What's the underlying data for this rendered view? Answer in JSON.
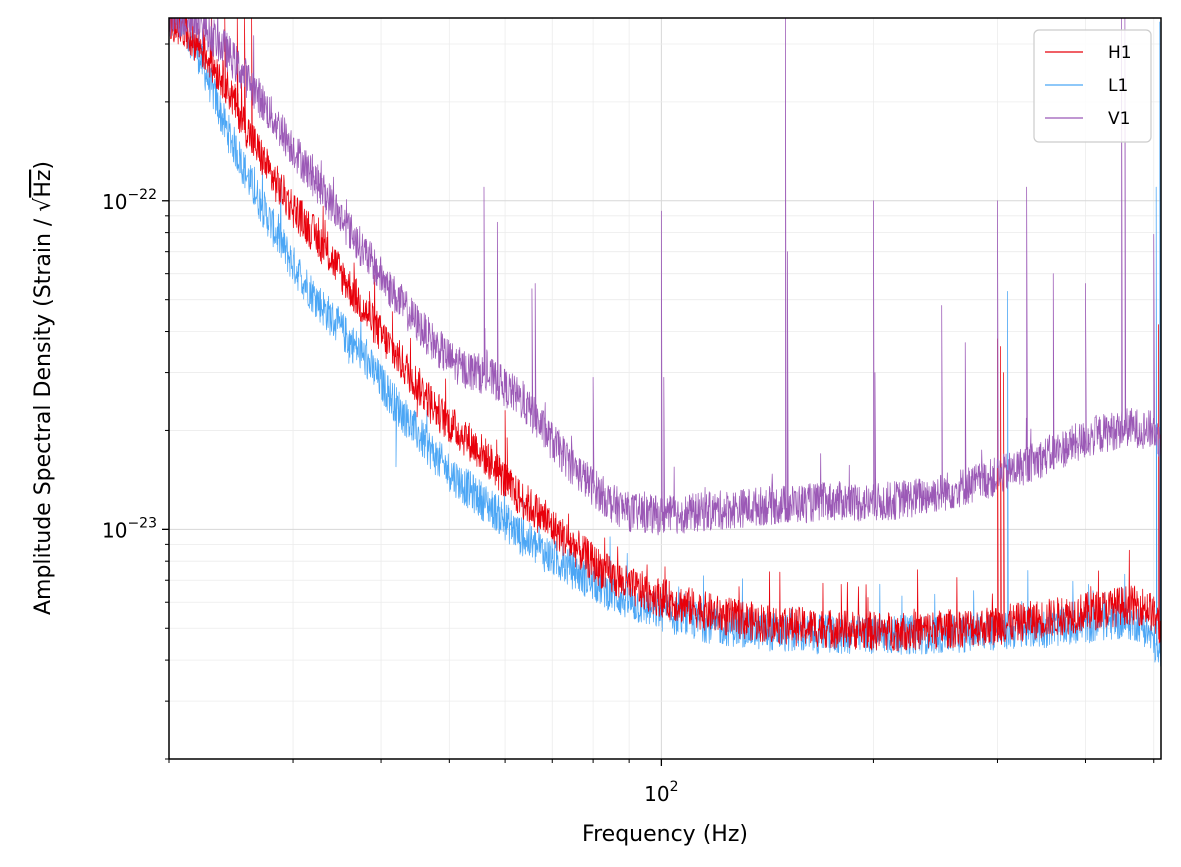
{
  "chart_data": {
    "type": "line",
    "xlabel": "Frequency (Hz)",
    "ylabel": {
      "prefix": "Amplitude Spectral Density (Strain / ",
      "radical": "√",
      "radicand": "Hz",
      "suffix": ")"
    },
    "xscale": "log",
    "yscale": "log",
    "xlim": [
      20,
      512
    ],
    "ylim": [
      2e-24,
      3.6e-22
    ],
    "grid": true,
    "legend_position": "top-right",
    "x_ticks": [
      {
        "value": 100,
        "base": "10",
        "exponent": "2"
      }
    ],
    "y_ticks": [
      {
        "value": 1e-23,
        "base": "10",
        "exponent": "−23"
      },
      {
        "value": 1e-22,
        "base": "10",
        "exponent": "−22"
      }
    ],
    "series": [
      {
        "name": "H1",
        "color": "#e8000b",
        "points": [
          [
            20,
            3.6e-22
          ],
          [
            22,
            3e-22
          ],
          [
            24,
            2.3e-22
          ],
          [
            26,
            1.6e-22
          ],
          [
            28,
            1.18e-22
          ],
          [
            30,
            9.5e-23
          ],
          [
            32,
            8e-23
          ],
          [
            34,
            6.7e-23
          ],
          [
            36,
            5.5e-23
          ],
          [
            38,
            4.6e-23
          ],
          [
            40,
            3.9e-23
          ],
          [
            42,
            3.4e-23
          ],
          [
            44,
            2.95e-23
          ],
          [
            46,
            2.6e-23
          ],
          [
            48,
            2.3e-23
          ],
          [
            50,
            2.1e-23
          ],
          [
            52,
            1.95e-23
          ],
          [
            55,
            1.75e-23
          ],
          [
            58,
            1.55e-23
          ],
          [
            60,
            1.4e-23
          ],
          [
            62,
            1.28e-23
          ],
          [
            65,
            1.18e-23
          ],
          [
            68,
            1.08e-23
          ],
          [
            72,
            9.6e-24
          ],
          [
            76,
            8.7e-24
          ],
          [
            80,
            7.9e-24
          ],
          [
            85,
            7.2e-24
          ],
          [
            90,
            6.7e-24
          ],
          [
            100,
            6.2e-24
          ],
          [
            110,
            5.8e-24
          ],
          [
            120,
            5.5e-24
          ],
          [
            130,
            5.3e-24
          ],
          [
            150,
            5.1e-24
          ],
          [
            170,
            5e-24
          ],
          [
            200,
            4.9e-24
          ],
          [
            230,
            4.9e-24
          ],
          [
            260,
            5e-24
          ],
          [
            300,
            5.1e-24
          ],
          [
            340,
            5.3e-24
          ],
          [
            380,
            5.5e-24
          ],
          [
            420,
            5.7e-24
          ],
          [
            460,
            5.9e-24
          ],
          [
            490,
            5.8e-24
          ],
          [
            505,
            5.3e-24
          ],
          [
            512,
            4.7e-24
          ]
        ],
        "peaks": [
          [
            24,
            3.6e-22
          ],
          [
            25,
            3.6e-22
          ],
          [
            25.6,
            3.6e-22
          ],
          [
            26.2,
            3.6e-22
          ],
          [
            33.5,
            6.8e-23
          ],
          [
            35.2,
            5.3e-23
          ],
          [
            38.5,
            5.3e-23
          ],
          [
            41.5,
            4.6e-23
          ],
          [
            45,
            2.2e-23
          ],
          [
            47,
            2.1e-23
          ],
          [
            50,
            1.9e-23
          ],
          [
            60,
            2.3e-23
          ],
          [
            60.4,
            1.9e-23
          ],
          [
            180,
            6.8e-24
          ],
          [
            300,
            3.8e-23
          ],
          [
            303,
            3.6e-23
          ],
          [
            306,
            3e-23
          ],
          [
            407,
            6.7e-24
          ],
          [
            508,
            4.2e-23
          ]
        ]
      },
      {
        "name": "L1",
        "color": "#4ba6f5",
        "points": [
          [
            20,
            3.6e-22
          ],
          [
            21,
            3.4e-22
          ],
          [
            22,
            2.8e-22
          ],
          [
            23,
            2.2e-22
          ],
          [
            24,
            1.7e-22
          ],
          [
            25,
            1.4e-22
          ],
          [
            26,
            1.15e-22
          ],
          [
            28,
            8.4e-23
          ],
          [
            30,
            6.4e-23
          ],
          [
            32,
            5.2e-23
          ],
          [
            34,
            4.4e-23
          ],
          [
            36,
            3.8e-23
          ],
          [
            38,
            3.3e-23
          ],
          [
            40,
            2.8e-23
          ],
          [
            42,
            2.4e-23
          ],
          [
            44,
            2.1e-23
          ],
          [
            46,
            1.85e-23
          ],
          [
            48,
            1.65e-23
          ],
          [
            50,
            1.5e-23
          ],
          [
            52,
            1.38e-23
          ],
          [
            55,
            1.25e-23
          ],
          [
            58,
            1.14e-23
          ],
          [
            60,
            1.06e-23
          ],
          [
            63,
            9.6e-24
          ],
          [
            66,
            8.9e-24
          ],
          [
            70,
            8.2e-24
          ],
          [
            75,
            7.5e-24
          ],
          [
            80,
            6.9e-24
          ],
          [
            85,
            6.4e-24
          ],
          [
            90,
            6e-24
          ],
          [
            100,
            5.6e-24
          ],
          [
            110,
            5.3e-24
          ],
          [
            120,
            5.1e-24
          ],
          [
            140,
            4.9e-24
          ],
          [
            160,
            4.8e-24
          ],
          [
            200,
            4.75e-24
          ],
          [
            250,
            4.8e-24
          ],
          [
            300,
            4.9e-24
          ],
          [
            350,
            5e-24
          ],
          [
            400,
            5.15e-24
          ],
          [
            450,
            5.3e-24
          ],
          [
            480,
            5.2e-24
          ],
          [
            500,
            4.6e-24
          ],
          [
            512,
            3.9e-24
          ]
        ],
        "peaks": [
          [
            31,
            5.4e-23
          ],
          [
            36,
            3.2e-23
          ],
          [
            42,
            1.55e-23
          ],
          [
            55,
            1.25e-23
          ],
          [
            310,
            5.3e-23
          ],
          [
            404,
            6.8e-24
          ],
          [
            410,
            6.5e-24
          ],
          [
            504,
            1.1e-22
          ],
          [
            510,
            3.5e-22
          ]
        ]
      },
      {
        "name": "V1",
        "color": "#9b59b6",
        "points": [
          [
            20,
            3.6e-22
          ],
          [
            22,
            3.5e-22
          ],
          [
            24,
            2.9e-22
          ],
          [
            26,
            2.3e-22
          ],
          [
            28,
            1.8e-22
          ],
          [
            30,
            1.45e-22
          ],
          [
            32,
            1.18e-22
          ],
          [
            34,
            9.8e-23
          ],
          [
            36,
            8.2e-23
          ],
          [
            38,
            6.9e-23
          ],
          [
            40,
            5.9e-23
          ],
          [
            42,
            5.1e-23
          ],
          [
            44,
            4.5e-23
          ],
          [
            46,
            4e-23
          ],
          [
            48,
            3.6e-23
          ],
          [
            50,
            3.3e-23
          ],
          [
            52,
            3.1e-23
          ],
          [
            55,
            3e-23
          ],
          [
            58,
            2.85e-23
          ],
          [
            60,
            2.7e-23
          ],
          [
            63,
            2.5e-23
          ],
          [
            66,
            2.2e-23
          ],
          [
            70,
            1.85e-23
          ],
          [
            75,
            1.55e-23
          ],
          [
            80,
            1.35e-23
          ],
          [
            85,
            1.2e-23
          ],
          [
            90,
            1.13e-23
          ],
          [
            100,
            1.1e-23
          ],
          [
            110,
            1.12e-23
          ],
          [
            120,
            1.14e-23
          ],
          [
            140,
            1.18e-23
          ],
          [
            160,
            1.2e-23
          ],
          [
            180,
            1.22e-23
          ],
          [
            200,
            1.2e-23
          ],
          [
            230,
            1.25e-23
          ],
          [
            260,
            1.32e-23
          ],
          [
            300,
            1.45e-23
          ],
          [
            340,
            1.62e-23
          ],
          [
            380,
            1.8e-23
          ],
          [
            420,
            1.95e-23
          ],
          [
            460,
            2.05e-23
          ],
          [
            500,
            2e-23
          ],
          [
            512,
            1.85e-23
          ]
        ],
        "peaks": [
          [
            30,
            1.3e-22
          ],
          [
            34.5,
            1e-22
          ],
          [
            38,
            6.6e-23
          ],
          [
            56,
            1.1e-22
          ],
          [
            58.5,
            8.6e-23
          ],
          [
            65.5,
            5.4e-23
          ],
          [
            66.2,
            5.6e-23
          ],
          [
            72,
            1.8e-23
          ],
          [
            80,
            2.9e-23
          ],
          [
            100,
            9.3e-23
          ],
          [
            100.8,
            2.9e-23
          ],
          [
            150,
            3.6e-22
          ],
          [
            151,
            7e-23
          ],
          [
            200,
            1e-22
          ],
          [
            201,
            3e-23
          ],
          [
            250,
            4.8e-23
          ],
          [
            270,
            3.7e-23
          ],
          [
            300,
            1e-22
          ],
          [
            330,
            1.1e-22
          ],
          [
            360,
            6e-23
          ],
          [
            400,
            5.6e-23
          ],
          [
            450,
            3.6e-22
          ],
          [
            455,
            3.6e-22
          ],
          [
            500,
            7.9e-23
          ]
        ]
      }
    ]
  }
}
